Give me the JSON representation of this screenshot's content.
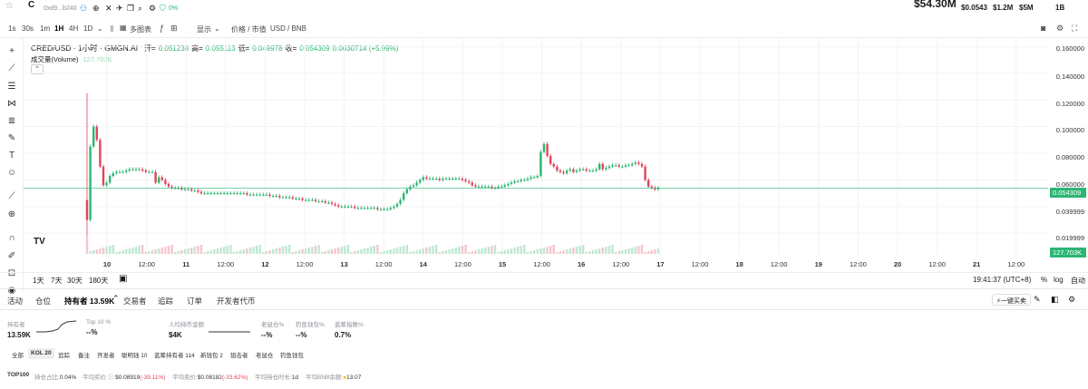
{
  "topbar": {
    "token_initial": "C",
    "address": "0xd9...b240",
    "percent": "0%",
    "price": "$54.30M",
    "stats": [
      "$0.0543",
      "$1.2M",
      "$5M",
      "1B"
    ]
  },
  "toolbar": {
    "timeframes": [
      "1s",
      "30s",
      "1m",
      "1H",
      "4H",
      "1D"
    ],
    "active_timeframe": "1H",
    "multi_chart": "多图表",
    "display": "显示",
    "price_mcap": "价格 / 市值",
    "pair": "USD / BNB"
  },
  "legend": {
    "title": "CRED/USD · 1小时 · GMGN.AI",
    "open_label": "开=",
    "open": "0.051238",
    "high_label": "高=",
    "high": "0.055113",
    "low_label": "低=",
    "low": "0.049978",
    "close_label": "收=",
    "close": "0.054309",
    "change": "0.0030714 (+5.99%)",
    "volume_label": "成交量(Volume)",
    "volume": "127.703K"
  },
  "price_axis": {
    "ticks": [
      "0.160000",
      "0.140000",
      "0.120000",
      "0.100000",
      "0.080000",
      "0.060000",
      "0.039999",
      "0.019999"
    ],
    "current_price": "0.054309",
    "current_volume": "127.703K"
  },
  "time_axis": [
    "10",
    "12:00",
    "11",
    "12:00",
    "12",
    "12:00",
    "13",
    "12:00",
    "14",
    "12:00",
    "15",
    "12:00",
    "16",
    "12:00",
    "17",
    "12:00",
    "18",
    "12:00",
    "19",
    "12:00",
    "20",
    "12:00",
    "21",
    "12:00"
  ],
  "range_bar": {
    "ranges": [
      "1天",
      "7天",
      "30天",
      "180天"
    ],
    "clock": "19:41:37 (UTC+8)",
    "percent": "%",
    "log": "log",
    "auto": "自动"
  },
  "tabs": {
    "items": [
      "活动",
      "仓位",
      "持有者 13.59K",
      "交易者",
      "追踪",
      "订单",
      "开发者代币"
    ],
    "active": 2,
    "quick_buy": "一键买卖"
  },
  "holder_stats": [
    {
      "label": "持有者",
      "value": "13.59K"
    },
    {
      "label": "Top 10 %",
      "value": "--%"
    },
    {
      "label": "人均持币金额",
      "value": "$4K"
    },
    {
      "label": "老鼠仓%",
      "value": "--%"
    },
    {
      "label": "钓鱼钱包%",
      "value": "--%"
    },
    {
      "label": "蓝筹指数%",
      "value": "0.7%"
    }
  ],
  "filter_chips": [
    "全部",
    "KOL 20",
    "追踪",
    "备注",
    "开发者",
    "聪明钱 10",
    "蓝筹持有者 114",
    "新钱包 2",
    "狙击者",
    "老鼠仓",
    "钓鱼钱包"
  ],
  "active_chip": 1,
  "bottom_row": {
    "top": "TOP100",
    "hold_ratio_label": "持仓占比:",
    "hold_ratio": "0.04%",
    "avg_buy_label": "平均买价 ⓘ:",
    "avg_buy": "$0.08919",
    "avg_buy_change": "(-39.11%)",
    "avg_sell_label": "平均卖价:",
    "avg_sell": "$0.08182",
    "avg_sell_change": "(-33.62%)",
    "avg_hold_label": "平均持仓时长:",
    "avg_hold": "1d",
    "avg_bnb_label": "平均BNB余额:",
    "avg_bnb": "13.07"
  },
  "colors": {
    "up": "#2bb673",
    "down": "#e0455a",
    "accent": "#2bb673"
  },
  "chart_data": {
    "type": "candlestick",
    "interval": "1H",
    "y_range": [
      0.01,
      0.165
    ],
    "x_start": "10 02:00",
    "close_series": [
      0.03,
      0.085,
      0.1,
      0.09,
      0.07,
      0.056,
      0.058,
      0.063,
      0.065,
      0.066,
      0.066,
      0.066,
      0.067,
      0.068,
      0.068,
      0.068,
      0.068,
      0.067,
      0.066,
      0.066,
      0.066,
      0.058,
      0.062,
      0.06,
      0.057,
      0.055,
      0.054,
      0.054,
      0.054,
      0.053,
      0.053,
      0.053,
      0.052,
      0.052,
      0.051,
      0.05,
      0.05,
      0.05,
      0.05,
      0.05,
      0.05,
      0.05,
      0.05,
      0.05,
      0.05,
      0.05,
      0.05,
      0.05,
      0.05,
      0.049,
      0.049,
      0.049,
      0.049,
      0.049,
      0.049,
      0.049,
      0.048,
      0.048,
      0.048,
      0.047,
      0.047,
      0.047,
      0.047,
      0.046,
      0.046,
      0.046,
      0.045,
      0.045,
      0.045,
      0.045,
      0.044,
      0.044,
      0.044,
      0.043,
      0.043,
      0.042,
      0.041,
      0.04,
      0.04,
      0.04,
      0.04,
      0.04,
      0.039,
      0.039,
      0.039,
      0.039,
      0.039,
      0.039,
      0.039,
      0.038,
      0.038,
      0.038,
      0.038,
      0.039,
      0.04,
      0.042,
      0.045,
      0.05,
      0.053,
      0.055,
      0.056,
      0.058,
      0.06,
      0.062,
      0.061,
      0.061,
      0.061,
      0.061,
      0.06,
      0.061,
      0.061,
      0.061,
      0.061,
      0.061,
      0.061,
      0.06,
      0.059,
      0.058,
      0.056,
      0.055,
      0.055,
      0.055,
      0.055,
      0.055,
      0.054,
      0.054,
      0.055,
      0.055,
      0.056,
      0.057,
      0.058,
      0.059,
      0.059,
      0.06,
      0.06,
      0.061,
      0.062,
      0.062,
      0.063,
      0.081,
      0.087,
      0.078,
      0.072,
      0.07,
      0.067,
      0.066,
      0.065,
      0.067,
      0.068,
      0.066,
      0.067,
      0.068,
      0.068,
      0.067,
      0.067,
      0.067,
      0.068,
      0.072,
      0.068,
      0.069,
      0.07,
      0.071,
      0.071,
      0.07,
      0.07,
      0.071,
      0.071,
      0.072,
      0.073,
      0.072,
      0.07,
      0.06,
      0.055,
      0.054,
      0.053,
      0.054
    ]
  }
}
